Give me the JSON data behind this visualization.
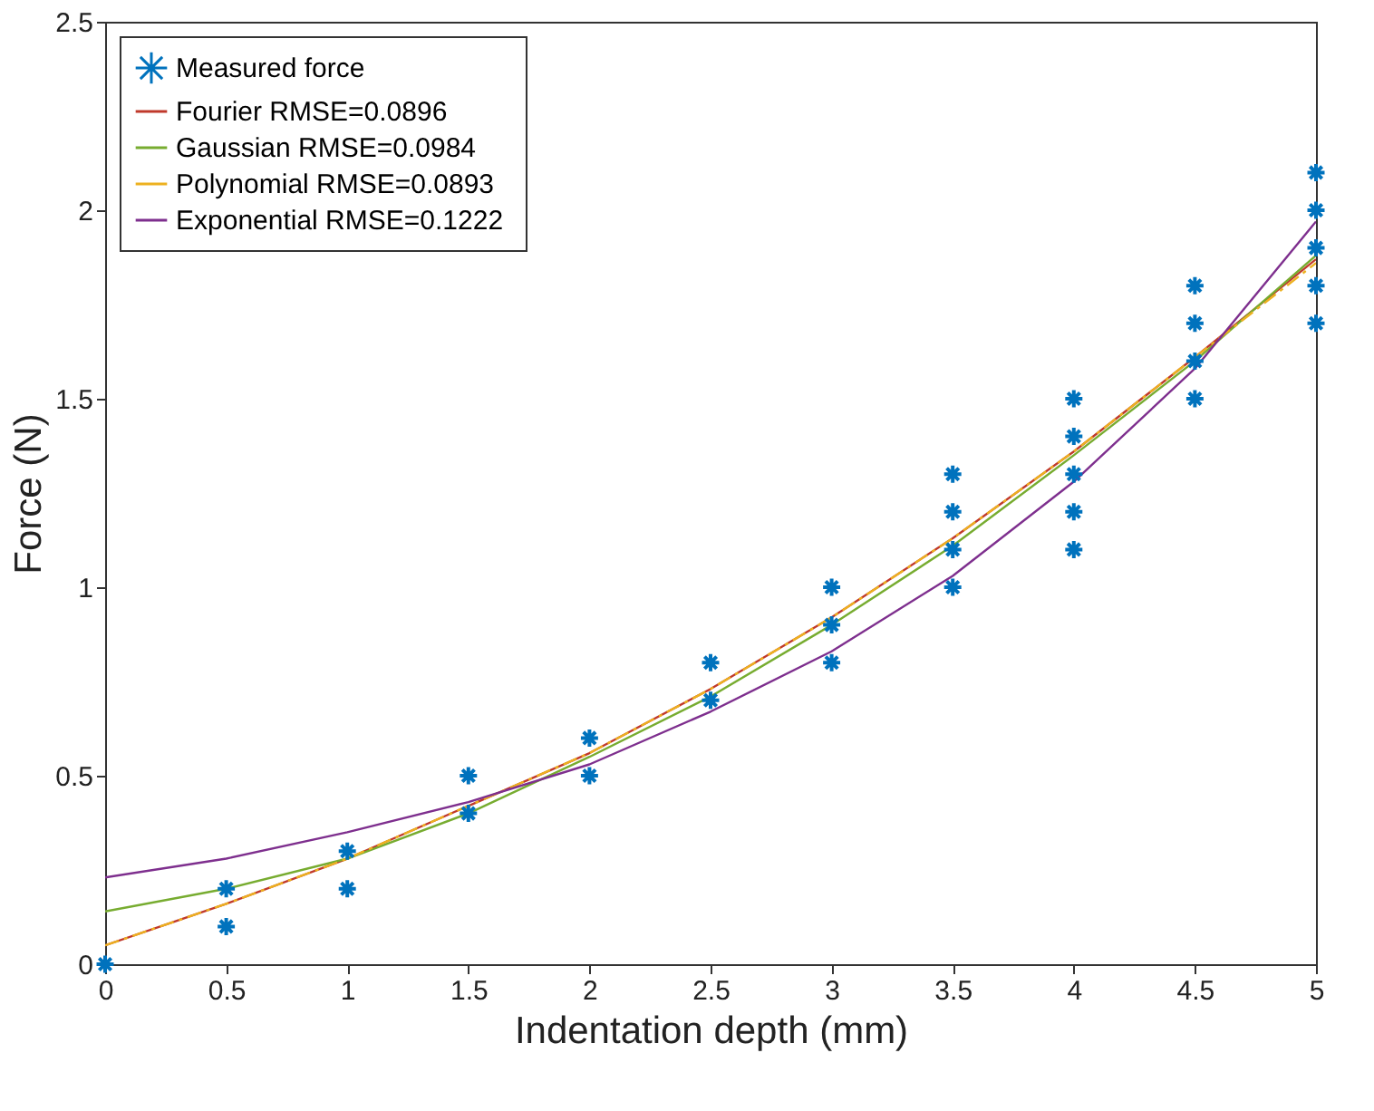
{
  "chart_data": {
    "type": "line",
    "xlabel": "Indentation depth (mm)",
    "ylabel": "Force (N)",
    "xlim": [
      0,
      5
    ],
    "ylim": [
      0,
      2.5
    ],
    "xticks": [
      0,
      0.5,
      1,
      1.5,
      2,
      2.5,
      3,
      3.5,
      4,
      4.5,
      5
    ],
    "yticks": [
      0,
      0.5,
      1,
      1.5,
      2,
      2.5
    ],
    "grid": false,
    "legend": "top left",
    "series": [
      {
        "name": "Measured force",
        "type": "scatter",
        "marker": "cross",
        "color": "#0072bd",
        "x": [
          0,
          0.5,
          0.5,
          1,
          1,
          1.5,
          1.5,
          2,
          2,
          2.5,
          2.5,
          3,
          3,
          3,
          3.5,
          3.5,
          3.5,
          3.5,
          4,
          4,
          4,
          4,
          4,
          4.5,
          4.5,
          4.5,
          4.5,
          5,
          5,
          5,
          5,
          5
        ],
        "values": [
          0,
          0.1,
          0.2,
          0.2,
          0.3,
          0.4,
          0.5,
          0.5,
          0.6,
          0.7,
          0.8,
          0.8,
          0.9,
          1.0,
          1.0,
          1.1,
          1.2,
          1.3,
          1.1,
          1.2,
          1.3,
          1.4,
          1.5,
          1.5,
          1.6,
          1.7,
          1.8,
          1.7,
          1.8,
          1.9,
          2.0,
          2.1
        ]
      },
      {
        "name": "Fourier  RMSE=0.0896",
        "line_style": "solid",
        "color": "#c0392b",
        "x": [
          0,
          0.5,
          1,
          1.5,
          2,
          2.5,
          3,
          3.5,
          4,
          4.5,
          5
        ],
        "values": [
          0.05,
          0.16,
          0.28,
          0.42,
          0.56,
          0.73,
          0.92,
          1.13,
          1.36,
          1.61,
          1.87
        ]
      },
      {
        "name": "Gaussian  RMSE=0.0984",
        "line_style": "solid",
        "color": "#77ac30",
        "x": [
          0,
          0.5,
          1,
          1.5,
          2,
          2.5,
          3,
          3.5,
          4,
          4.5,
          5
        ],
        "values": [
          0.14,
          0.2,
          0.28,
          0.4,
          0.55,
          0.71,
          0.9,
          1.11,
          1.35,
          1.6,
          1.88
        ]
      },
      {
        "name": "Polynomial  RMSE=0.0893",
        "line_style": "dashed",
        "color": "#edb120",
        "x": [
          0,
          0.5,
          1,
          1.5,
          2,
          2.5,
          3,
          3.5,
          4,
          4.5,
          5
        ],
        "values": [
          0.05,
          0.16,
          0.28,
          0.42,
          0.56,
          0.73,
          0.92,
          1.13,
          1.36,
          1.61,
          1.86
        ]
      },
      {
        "name": "Exponential  RMSE=0.1222",
        "line_style": "solid",
        "color": "#7e2f8e",
        "x": [
          0,
          0.5,
          1,
          1.5,
          2,
          2.5,
          3,
          3.5,
          4,
          4.5,
          5
        ],
        "values": [
          0.23,
          0.28,
          0.35,
          0.43,
          0.53,
          0.67,
          0.83,
          1.03,
          1.28,
          1.58,
          1.97
        ]
      }
    ]
  }
}
